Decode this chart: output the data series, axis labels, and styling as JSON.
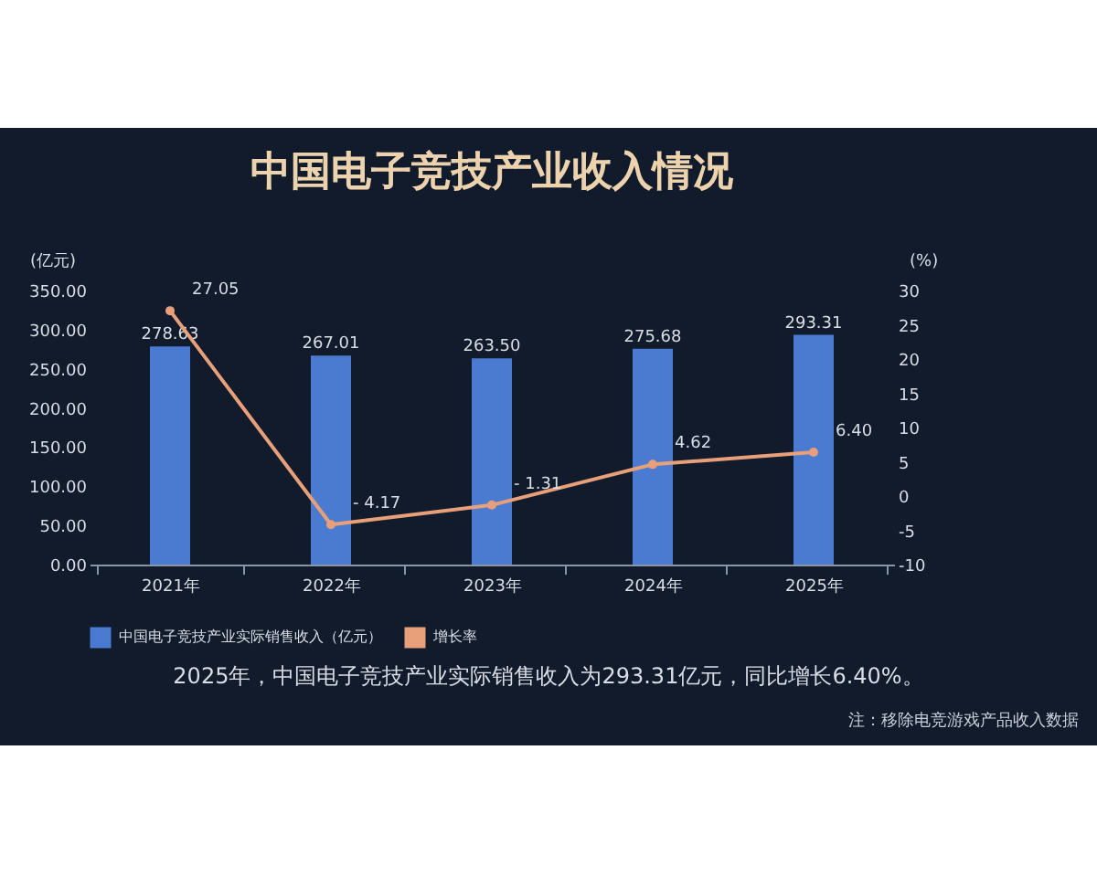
{
  "chart_data": {
    "type": "bar",
    "title": "中国电子竞技产业收入情况",
    "ylabel": "(亿元)",
    "y2label": "(%)",
    "categories": [
      "2021年",
      "2022年",
      "2023年",
      "2024年",
      "2025年"
    ],
    "series": [
      {
        "name": "中国电子竞技产业实际销售收入（亿元）",
        "color": "#4a7bd0",
        "values": [
          278.63,
          267.01,
          263.5,
          275.68,
          293.31
        ],
        "value_labels": [
          "278.63",
          "267.01",
          "263.50",
          "275.68",
          "293.31"
        ]
      },
      {
        "name": "增长率",
        "type": "line",
        "axis": "y2",
        "color": "#e8a07a",
        "values": [
          27.05,
          -4.17,
          -1.31,
          4.62,
          6.4
        ],
        "value_labels": [
          "27.05",
          "- 4.17",
          "- 1.31",
          "4.62",
          "6.40"
        ]
      }
    ],
    "ylim": [
      0,
      350
    ],
    "yticks": [
      {
        "value": 0,
        "label": "0.00"
      },
      {
        "value": 50,
        "label": "50.00"
      },
      {
        "value": 100,
        "label": "100.00"
      },
      {
        "value": 150,
        "label": "150.00"
      },
      {
        "value": 200,
        "label": "200.00"
      },
      {
        "value": 250,
        "label": "250.00"
      },
      {
        "value": 300,
        "label": "300.00"
      },
      {
        "value": 350,
        "label": "350.00"
      }
    ],
    "y2lim": [
      -10,
      30
    ],
    "y2ticks": [
      -10,
      -5,
      0,
      5,
      10,
      15,
      20,
      25,
      30
    ],
    "grid": false,
    "legend": "bottom",
    "marker": "circle",
    "line_style": "solid",
    "annotations": [
      "2025年，中国电子竞技产业实际销售收入为293.31亿元，同比增长6.40%。",
      "注：移除电竞游戏产品收入数据"
    ]
  }
}
